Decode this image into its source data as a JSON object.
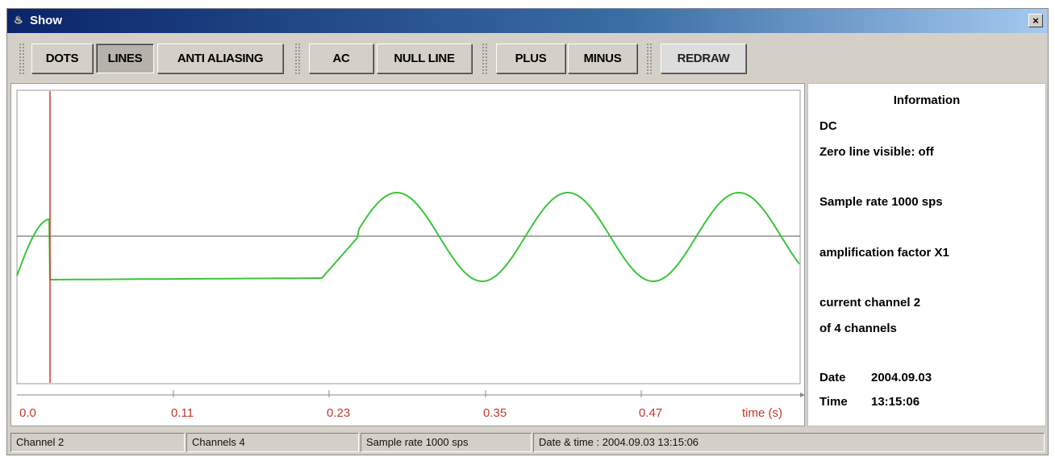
{
  "window": {
    "title": "Show",
    "close_glyph": "×"
  },
  "toolbar": {
    "buttons": [
      {
        "label": "DOTS",
        "pressed": false
      },
      {
        "label": "LINES",
        "pressed": true
      },
      {
        "label": "ANTI ALIASING",
        "pressed": false
      },
      {
        "label": "AC",
        "pressed": false
      },
      {
        "label": "NULL LINE",
        "pressed": false
      },
      {
        "label": "PLUS",
        "pressed": false
      },
      {
        "label": "MINUS",
        "pressed": false
      },
      {
        "label": "REDRAW",
        "pressed": false
      }
    ]
  },
  "plot": {
    "x_tick_labels": [
      "0.0",
      "0.11",
      "0.23",
      "0.35",
      "0.47"
    ],
    "x_axis_label": "time (s)",
    "colors": {
      "signal": "#3cc43c",
      "cursor": "#d03a2a",
      "zero_line": "#555555",
      "ticks": "#c0392b"
    }
  },
  "info": {
    "heading": "Information",
    "mode": "DC",
    "zero_line": "Zero line visible: off",
    "sample_rate": "Sample rate 1000 sps",
    "amplification": "amplification factor X1",
    "channel_line1": "current channel 2",
    "channel_line2": "of 4 channels",
    "date_label": "Date",
    "date_value": "2004.09.03",
    "time_label": "Time",
    "time_value": "13:15:06"
  },
  "statusbar": {
    "channel": "Channel 2",
    "channels": "Channels 4",
    "sample_rate": "Sample rate 1000 sps",
    "datetime": "Date & time : 2004.09.03     13:15:06"
  }
}
